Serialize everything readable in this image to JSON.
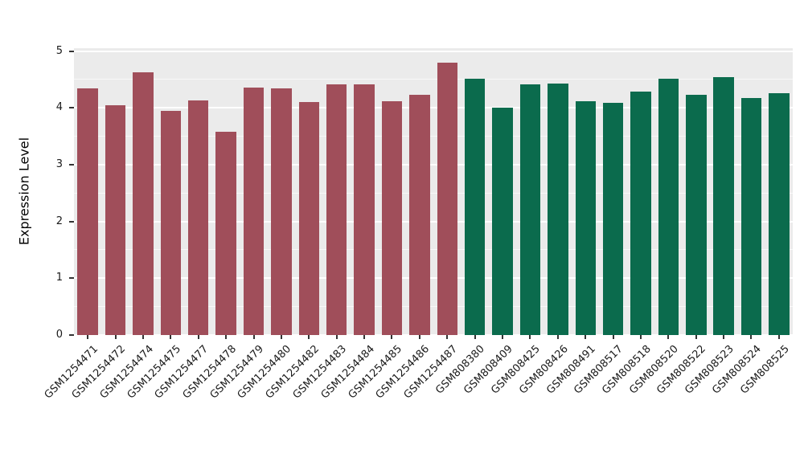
{
  "chart_data": {
    "type": "bar",
    "title": "",
    "xlabel": "",
    "ylabel": "Expression Level",
    "ylim": [
      0,
      5
    ],
    "yticks": [
      0,
      1,
      2,
      3,
      4,
      5
    ],
    "grid": "on",
    "legend": "none",
    "panel_background": "#EBEBEB",
    "gridline_color": "#FFFFFF",
    "group_colors": {
      "group1": "#A04E5A",
      "group2": "#0B6B4D"
    },
    "categories": [
      "GSM1254471",
      "GSM1254472",
      "GSM1254474",
      "GSM1254475",
      "GSM1254477",
      "GSM1254478",
      "GSM1254479",
      "GSM1254480",
      "GSM1254482",
      "GSM1254483",
      "GSM1254484",
      "GSM1254485",
      "GSM1254486",
      "GSM1254487",
      "GSM808380",
      "GSM808409",
      "GSM808425",
      "GSM808426",
      "GSM808491",
      "GSM808517",
      "GSM808518",
      "GSM808520",
      "GSM808522",
      "GSM808523",
      "GSM808524",
      "GSM808525"
    ],
    "values": [
      4.35,
      4.05,
      4.63,
      3.95,
      4.13,
      3.58,
      4.36,
      4.34,
      4.1,
      4.41,
      4.41,
      4.12,
      4.23,
      4.79,
      4.51,
      4.01,
      4.42,
      4.43,
      4.12,
      4.09,
      4.29,
      4.51,
      4.23,
      4.54,
      4.17,
      4.26
    ],
    "groups": [
      "group1",
      "group1",
      "group1",
      "group1",
      "group1",
      "group1",
      "group1",
      "group1",
      "group1",
      "group1",
      "group1",
      "group1",
      "group1",
      "group1",
      "group2",
      "group2",
      "group2",
      "group2",
      "group2",
      "group2",
      "group2",
      "group2",
      "group2",
      "group2",
      "group2",
      "group2"
    ]
  }
}
